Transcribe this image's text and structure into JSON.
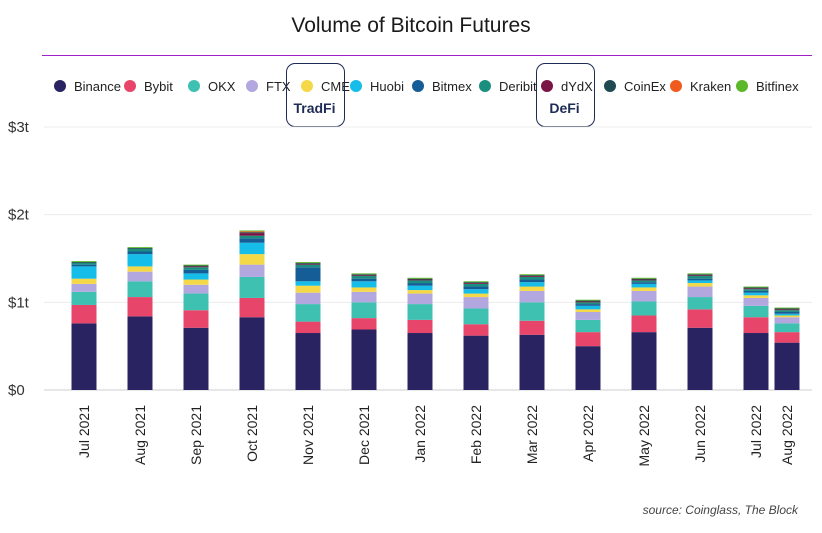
{
  "chart_data": {
    "type": "bar",
    "stacked": true,
    "title": "Volume of Bitcoin Futures",
    "xlabel": "",
    "ylabel": "",
    "ylim": [
      0,
      3
    ],
    "y_unit": "trillion USD",
    "y_ticks": [
      "$0",
      "$1t",
      "$2t",
      "$3t"
    ],
    "grid": true,
    "legend_position": "top",
    "categories": [
      "Jul 2021",
      "Aug 2021",
      "Sep 2021",
      "Oct 2021",
      "Nov 2021",
      "Dec 2021",
      "Jan 2022",
      "Feb 2022",
      "Mar 2022",
      "Apr 2022",
      "May 2022",
      "Jun 2022",
      "Jul 2022",
      "Aug 2022"
    ],
    "series": [
      {
        "name": "Binance",
        "color": "#2a2361",
        "values": [
          0.76,
          0.84,
          0.71,
          0.83,
          0.65,
          0.69,
          0.65,
          0.62,
          0.63,
          0.5,
          0.66,
          0.71,
          0.65,
          0.54
        ]
      },
      {
        "name": "Bybit",
        "color": "#e8456a",
        "values": [
          0.21,
          0.22,
          0.2,
          0.22,
          0.13,
          0.13,
          0.15,
          0.13,
          0.16,
          0.16,
          0.19,
          0.21,
          0.18,
          0.12
        ]
      },
      {
        "name": "OKX",
        "color": "#3fc1b2",
        "values": [
          0.15,
          0.18,
          0.19,
          0.24,
          0.2,
          0.18,
          0.18,
          0.18,
          0.21,
          0.14,
          0.16,
          0.14,
          0.13,
          0.1
        ]
      },
      {
        "name": "FTX",
        "color": "#b3a7e0",
        "values": [
          0.09,
          0.11,
          0.1,
          0.14,
          0.13,
          0.12,
          0.12,
          0.13,
          0.13,
          0.09,
          0.12,
          0.12,
          0.09,
          0.07
        ]
      },
      {
        "name": "CME",
        "color": "#f5d848",
        "values": [
          0.06,
          0.06,
          0.06,
          0.12,
          0.08,
          0.05,
          0.04,
          0.04,
          0.05,
          0.03,
          0.04,
          0.04,
          0.03,
          0.02
        ]
      },
      {
        "name": "Huobi",
        "color": "#16bde8",
        "values": [
          0.14,
          0.14,
          0.07,
          0.13,
          0.05,
          0.07,
          0.05,
          0.05,
          0.05,
          0.04,
          0.04,
          0.03,
          0.03,
          0.02
        ]
      },
      {
        "name": "Bitmex",
        "color": "#155d96",
        "values": [
          0.02,
          0.03,
          0.04,
          0.05,
          0.16,
          0.03,
          0.03,
          0.03,
          0.03,
          0.02,
          0.02,
          0.02,
          0.02,
          0.02
        ]
      },
      {
        "name": "Deribit",
        "color": "#1b8f7f",
        "values": [
          0.02,
          0.03,
          0.03,
          0.03,
          0.03,
          0.03,
          0.03,
          0.03,
          0.03,
          0.02,
          0.02,
          0.03,
          0.02,
          0.02
        ]
      },
      {
        "name": "dYdX",
        "color": "#7a1445",
        "values": [
          0.0,
          0.0,
          0.01,
          0.03,
          0.01,
          0.01,
          0.01,
          0.01,
          0.01,
          0.01,
          0.01,
          0.01,
          0.01,
          0.01
        ]
      },
      {
        "name": "CoinEx",
        "color": "#1f4a50",
        "values": [
          0.01,
          0.01,
          0.01,
          0.01,
          0.01,
          0.01,
          0.01,
          0.01,
          0.01,
          0.01,
          0.01,
          0.01,
          0.01,
          0.01
        ]
      },
      {
        "name": "Kraken",
        "color": "#f05a1f",
        "values": [
          0.0,
          0.0,
          0.0,
          0.01,
          0.0,
          0.0,
          0.0,
          0.0,
          0.0,
          0.0,
          0.0,
          0.0,
          0.0,
          0.0
        ]
      },
      {
        "name": "Bitfinex",
        "color": "#5cb82a",
        "values": [
          0.01,
          0.01,
          0.01,
          0.01,
          0.01,
          0.01,
          0.01,
          0.01,
          0.01,
          0.01,
          0.01,
          0.01,
          0.01,
          0.01
        ]
      }
    ],
    "annotations": [
      {
        "text": "TradFi",
        "series": "CME"
      },
      {
        "text": "DeFi",
        "series": "dYdX"
      }
    ],
    "source": "source: Coinglass, The Block"
  }
}
